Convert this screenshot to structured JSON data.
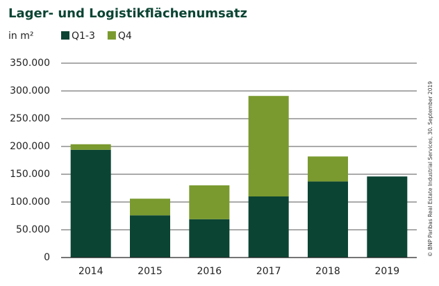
{
  "chart_data": {
    "type": "stacked_bar",
    "title": "Lager- und Logistikflächenumsatz",
    "unit": "in m²",
    "source": "© BNP Paribas Real Estate Industrial Services, 30. September 2019",
    "categories": [
      "2014",
      "2015",
      "2016",
      "2017",
      "2018",
      "2019"
    ],
    "series": [
      {
        "name": "Q1-3",
        "color": "#0b4433",
        "values": [
          194000,
          76000,
          69000,
          110000,
          137000,
          146000
        ]
      },
      {
        "name": "Q4",
        "color": "#7a9a2f",
        "values": [
          10000,
          30000,
          61000,
          181000,
          45000,
          null
        ]
      }
    ],
    "ylim": [
      0,
      350000
    ],
    "yticks": [
      0,
      {
        "value": 50000,
        "label": "50.000"
      },
      {
        "value": 100000,
        "label": "100.000"
      },
      {
        "value": 150000,
        "label": "150.000"
      },
      {
        "value": 200000,
        "label": "200.000"
      },
      {
        "value": 250000,
        "label": "250.000"
      },
      {
        "value": 300000,
        "label": "300.000"
      },
      {
        "value": 350000,
        "label": "350.000"
      }
    ],
    "grid": true
  }
}
